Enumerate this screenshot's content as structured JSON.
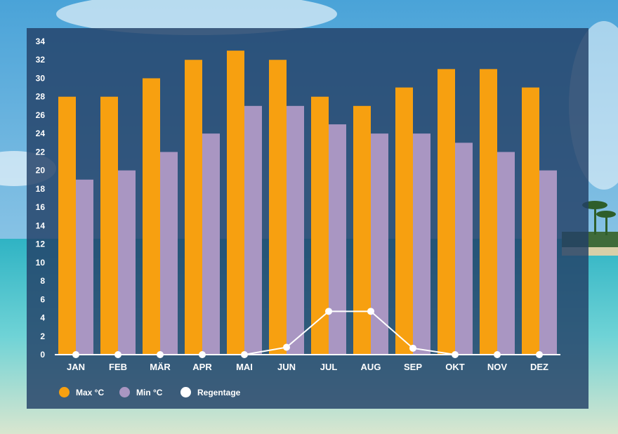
{
  "colors": {
    "max": "#f7a010",
    "min": "#a996c2",
    "rain": "#ffffff",
    "axis_text": "#ffffff"
  },
  "legend": [
    {
      "label": "Max °C",
      "color": "#f7a010"
    },
    {
      "label": "Min °C",
      "color": "#a996c2"
    },
    {
      "label": "Regentage",
      "color": "#ffffff"
    }
  ],
  "chart_data": {
    "type": "bar",
    "title": "",
    "xlabel": "",
    "ylabel": "",
    "ylim": [
      0,
      34
    ],
    "yticks": [
      0,
      2,
      4,
      6,
      8,
      10,
      12,
      14,
      16,
      18,
      20,
      22,
      24,
      26,
      28,
      30,
      32,
      34
    ],
    "grid": false,
    "legend_position": "bottom-left",
    "categories": [
      "JAN",
      "FEB",
      "MÄR",
      "APR",
      "MAI",
      "JUN",
      "JUL",
      "AUG",
      "SEP",
      "OKT",
      "NOV",
      "DEZ"
    ],
    "series": [
      {
        "name": "Max °C",
        "type": "bar",
        "values": [
          28,
          28,
          30,
          32,
          33,
          32,
          28,
          27,
          29,
          31,
          31,
          29
        ]
      },
      {
        "name": "Min °C",
        "type": "bar",
        "values": [
          19,
          20,
          22,
          24,
          27,
          27,
          25,
          24,
          24,
          23,
          22,
          20
        ]
      },
      {
        "name": "Regentage",
        "type": "line",
        "values": [
          0,
          0,
          0,
          0,
          0,
          0.8,
          4.7,
          4.7,
          0.7,
          0,
          0,
          0
        ]
      }
    ]
  }
}
